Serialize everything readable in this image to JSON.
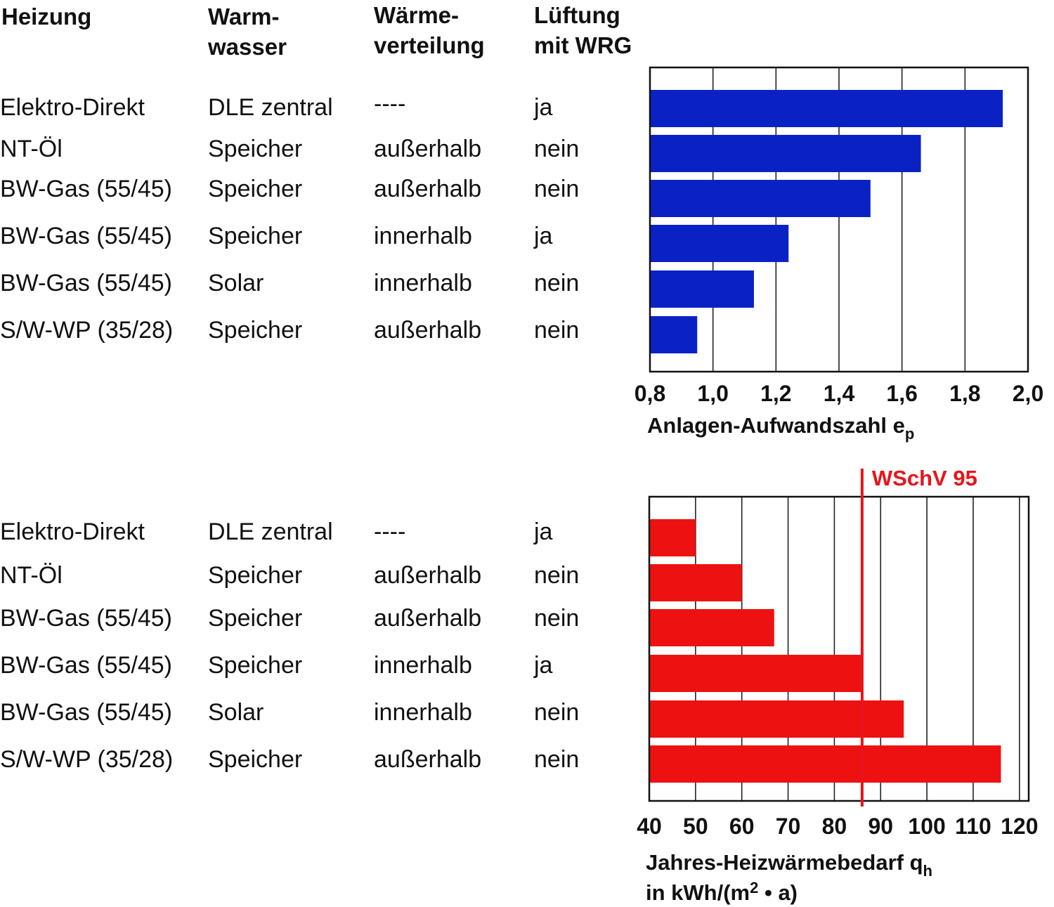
{
  "headers": {
    "heizung": "Heizung",
    "warmwasser": "Warm-\nwasser",
    "waermeverteilung": "Wärme-\nverteilung",
    "lueftung": "Lüftung\nmit WRG"
  },
  "rows": [
    {
      "heizung": "Elektro-Direkt",
      "warmwasser": "DLE zentral",
      "verteilung": "----",
      "lueftung": "ja"
    },
    {
      "heizung": "NT-Öl",
      "warmwasser": "Speicher",
      "verteilung": "außerhalb",
      "lueftung": "nein"
    },
    {
      "heizung": "BW-Gas (55/45)",
      "warmwasser": "Speicher",
      "verteilung": "außerhalb",
      "lueftung": "nein"
    },
    {
      "heizung": "BW-Gas (55/45)",
      "warmwasser": "Speicher",
      "verteilung": "innerhalb",
      "lueftung": "ja"
    },
    {
      "heizung": "BW-Gas (55/45)",
      "warmwasser": "Solar",
      "verteilung": "innerhalb",
      "lueftung": "nein"
    },
    {
      "heizung": "S/W-WP (35/28)",
      "warmwasser": "Speicher",
      "verteilung": "außerhalb",
      "lueftung": "nein"
    }
  ],
  "chart_data": [
    {
      "type": "bar",
      "orientation": "horizontal",
      "title": "",
      "categories": [
        "Elektro-Direkt",
        "NT-Öl",
        "BW-Gas (55/45)",
        "BW-Gas (55/45)",
        "BW-Gas (55/45)",
        "S/W-WP (35/28)"
      ],
      "values": [
        1.92,
        1.66,
        1.5,
        1.24,
        1.13,
        0.95
      ],
      "xlim": [
        0.8,
        2.0
      ],
      "xticks": [
        0.8,
        1.0,
        1.2,
        1.4,
        1.6,
        1.8,
        2.0
      ],
      "xtick_labels": [
        "0,8",
        "1,0",
        "1,2",
        "1,4",
        "1,6",
        "1,8",
        "2,0"
      ],
      "xlabel": "Anlagen-Aufwandszahl e",
      "xlabel_sub": "p",
      "grid": true,
      "color": "#0a22c4"
    },
    {
      "type": "bar",
      "orientation": "horizontal",
      "title": "",
      "categories": [
        "Elektro-Direkt",
        "NT-Öl",
        "BW-Gas (55/45)",
        "BW-Gas (55/45)",
        "BW-Gas (55/45)",
        "S/W-WP (35/28)"
      ],
      "values": [
        50,
        60,
        67,
        86,
        95,
        116
      ],
      "xlim": [
        40,
        122
      ],
      "xticks": [
        40,
        50,
        60,
        70,
        80,
        90,
        100,
        110,
        120
      ],
      "xtick_labels": [
        "40",
        "50",
        "60",
        "70",
        "80",
        "90",
        "100",
        "110",
        "120"
      ],
      "xlabel_line1": "Jahres-Heizwärmebedarf q",
      "xlabel_line1_sub": "h",
      "xlabel_line2_pre": "in kWh/(m",
      "xlabel_line2_sup": "2",
      "xlabel_line2_post": " • a)",
      "grid": true,
      "color": "#ee1111",
      "reference": {
        "label": "WSchV 95",
        "value": 86,
        "color": "#e8141c"
      }
    }
  ]
}
